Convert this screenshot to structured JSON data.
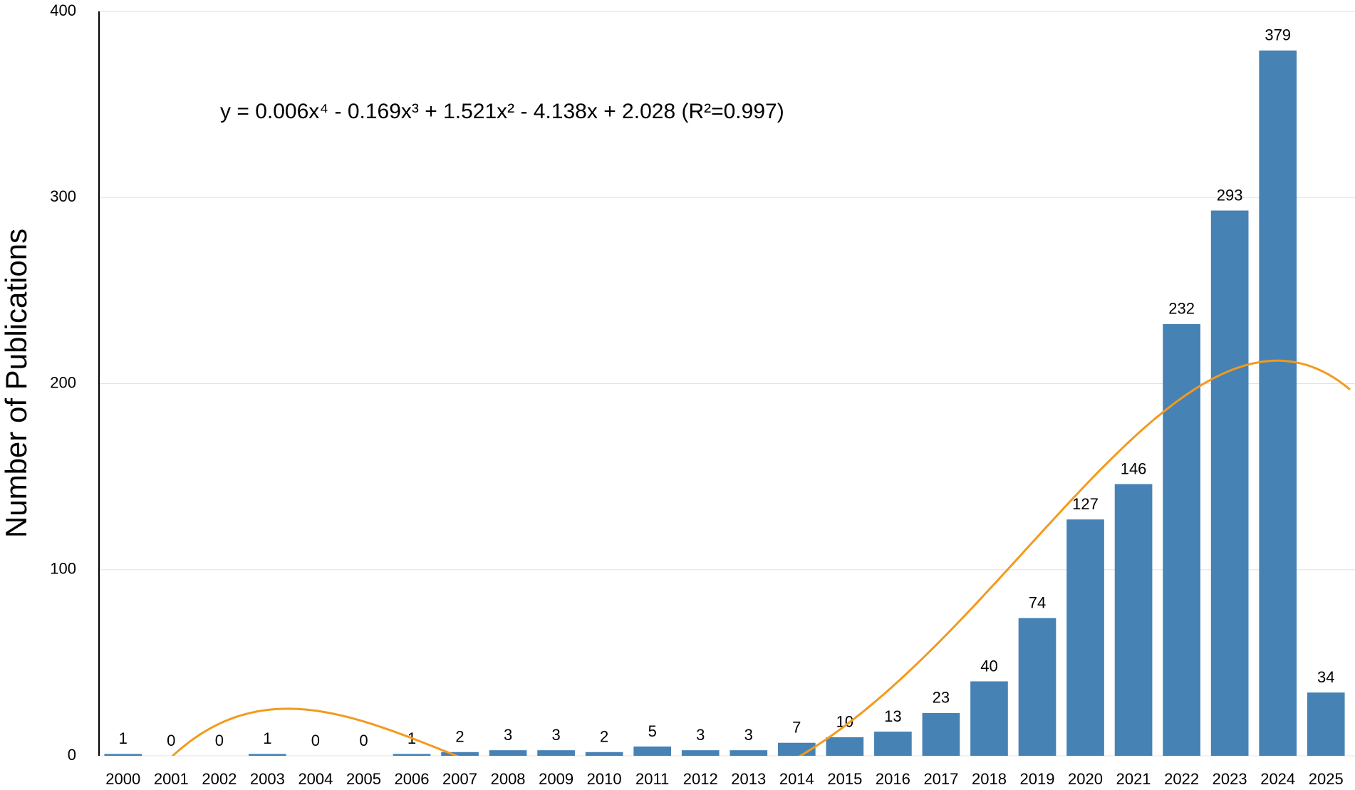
{
  "chart_data": {
    "type": "bar",
    "y_label": "Number of Publications",
    "annotation": "y = 0.006x⁴ - 0.169x³ + 1.521x² - 4.138x + 2.028 (R²=0.997)",
    "categories": [
      "2000",
      "2001",
      "2002",
      "2003",
      "2004",
      "2005",
      "2006",
      "2007",
      "2008",
      "2009",
      "2010",
      "2011",
      "2012",
      "2013",
      "2014",
      "2015",
      "2016",
      "2017",
      "2018",
      "2019",
      "2020",
      "2021",
      "2022",
      "2023",
      "2024",
      "2025"
    ],
    "values": [
      1,
      0,
      0,
      1,
      0,
      0,
      1,
      2,
      3,
      3,
      2,
      5,
      3,
      3,
      7,
      10,
      13,
      23,
      40,
      74,
      127,
      146,
      232,
      293,
      379,
      34
    ],
    "color": "#4682b4",
    "trend_color": "#f39a1e",
    "ylim": [
      0,
      400
    ],
    "yticks": [
      0,
      100,
      200,
      300,
      400
    ],
    "grid": true
  }
}
